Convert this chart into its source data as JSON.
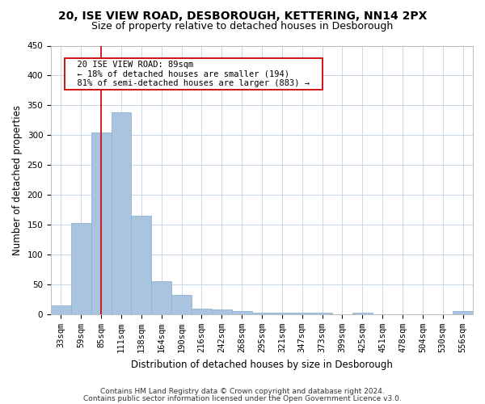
{
  "title1": "20, ISE VIEW ROAD, DESBOROUGH, KETTERING, NN14 2PX",
  "title2": "Size of property relative to detached houses in Desborough",
  "xlabel": "Distribution of detached houses by size in Desborough",
  "ylabel": "Number of detached properties",
  "footer1": "Contains HM Land Registry data © Crown copyright and database right 2024.",
  "footer2": "Contains public sector information licensed under the Open Government Licence v3.0.",
  "categories": [
    "33sqm",
    "59sqm",
    "85sqm",
    "111sqm",
    "138sqm",
    "164sqm",
    "190sqm",
    "216sqm",
    "242sqm",
    "268sqm",
    "295sqm",
    "321sqm",
    "347sqm",
    "373sqm",
    "399sqm",
    "425sqm",
    "451sqm",
    "478sqm",
    "504sqm",
    "530sqm",
    "556sqm"
  ],
  "values": [
    15,
    153,
    305,
    338,
    165,
    56,
    33,
    9,
    8,
    5,
    2,
    3,
    3,
    3,
    0,
    3,
    0,
    0,
    0,
    0,
    5
  ],
  "bar_color": "#aac4e0",
  "bar_edge_color": "#8ab4d4",
  "vline_x": 2,
  "vline_color": "#cc0000",
  "annotation_text": "  20 ISE VIEW ROAD: 89sqm  \n  ← 18% of detached houses are smaller (194)  \n  81% of semi-detached houses are larger (883) →  ",
  "annotation_box_color": "#ffffff",
  "annotation_box_edge": "#cc0000",
  "ylim": [
    0,
    450
  ],
  "yticks": [
    0,
    50,
    100,
    150,
    200,
    250,
    300,
    350,
    400,
    450
  ],
  "bg_color": "#ffffff",
  "grid_color": "#c8d8e8",
  "title1_fontsize": 10,
  "title2_fontsize": 9,
  "xlabel_fontsize": 8.5,
  "ylabel_fontsize": 8.5,
  "tick_fontsize": 7.5,
  "ann_fontsize": 7.5,
  "footer_fontsize": 6.5
}
